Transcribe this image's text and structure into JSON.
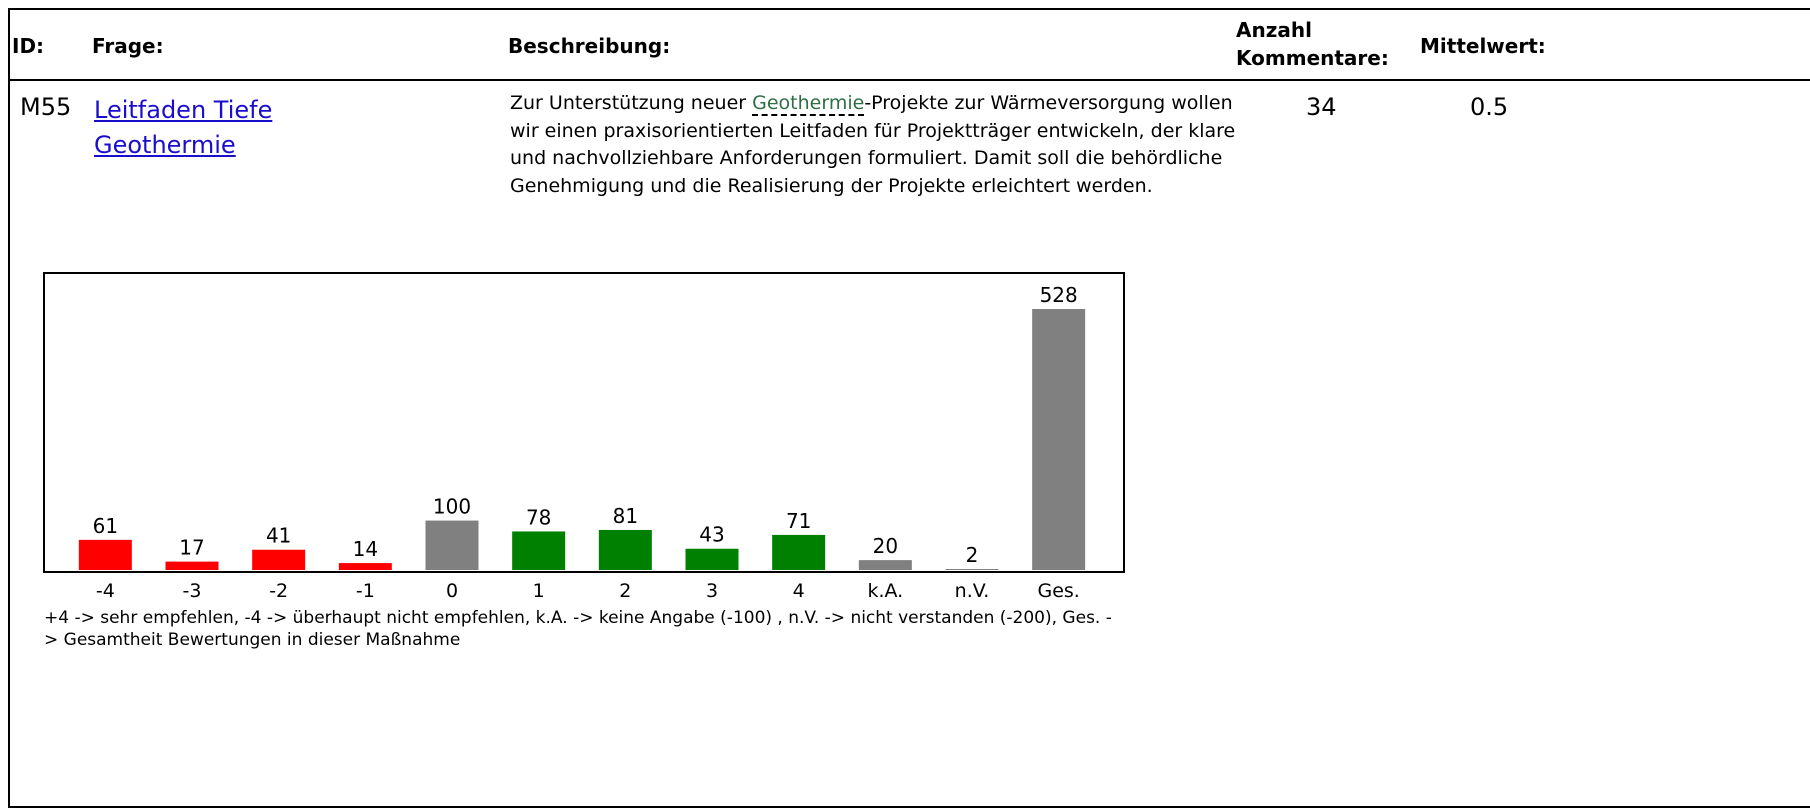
{
  "table": {
    "headers": [
      "ID:",
      "Frage:",
      "Beschreibung:",
      "Anzahl Kommentare:",
      "Mittelwert:"
    ],
    "row": {
      "id": "M55",
      "question": "Leitfaden Tiefe Geothermie",
      "description": [
        "Zur Unterstützung neuer ",
        "Geothermie",
        "-Projekte zur Wärmeversorgung wollen wir einen praxisorientierten Leitfaden für Projektträger entwickeln, der klare und nachvollziehbare Anforderungen formuliert. Damit soll die behördliche Genehmigung und die Realisierung der Projekte erleichtert werden."
      ],
      "comments": "34",
      "mean": "0.5"
    }
  },
  "chart_data": {
    "type": "bar",
    "categories": [
      "-4",
      "-3",
      "-2",
      "-1",
      "0",
      "1",
      "2",
      "3",
      "4",
      "k.A.",
      "n.V.",
      "Ges."
    ],
    "values": [
      61,
      17,
      41,
      14,
      100,
      78,
      81,
      43,
      71,
      20,
      2,
      528
    ],
    "colors": [
      "#ff0000",
      "#ff0000",
      "#ff0000",
      "#ff0000",
      "#808080",
      "#008000",
      "#008000",
      "#008000",
      "#008000",
      "#808080",
      "#808080",
      "#808080"
    ],
    "note": "+4 -> sehr empfehlen, -4 -> überhaupt nicht empfehlen, k.A. -> keine Angabe (-100) , n.V. -> nicht verstanden (-200), Ges. -> Gesamtheit Bewertungen in dieser Maßnahme"
  }
}
